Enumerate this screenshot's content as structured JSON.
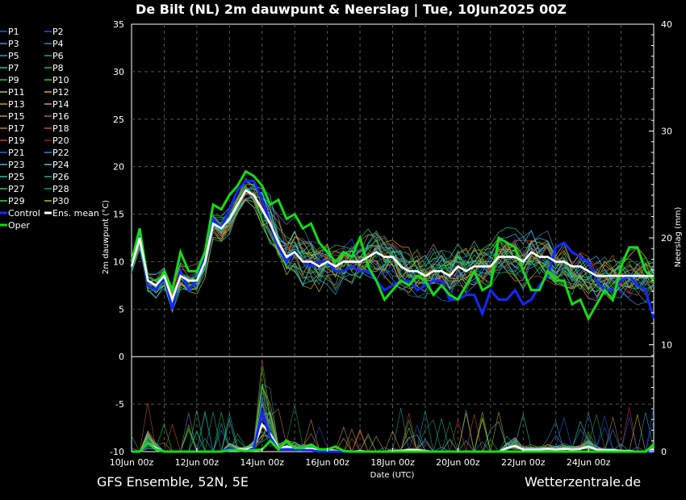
{
  "chart_data": {
    "type": "line",
    "title": "De Bilt  (NL)  2m dauwpunt & Neerslag | Tue, 10Jun2025 00Z",
    "xlabel": "Date (UTC)",
    "ylabel": "2m dauwpunt (°C)",
    "y2label": "Neerslag (mm)",
    "ylim": [
      -10,
      35
    ],
    "y2lim": [
      0,
      40
    ],
    "grid": true,
    "legend_position": "left",
    "x_tick_labels": [
      "10Jun 00z",
      "12Jun 00z",
      "14Jun 00z",
      "16Jun 00z",
      "18Jun 00z",
      "20Jun 00z",
      "22Jun 00z",
      "24Jun 00z"
    ],
    "y_ticks": [
      -10,
      -5,
      0,
      5,
      10,
      15,
      20,
      25,
      30,
      35
    ],
    "y2_ticks": [
      0,
      10,
      20,
      30,
      40
    ],
    "legend": [
      "P1",
      "P2",
      "P3",
      "P4",
      "P5",
      "P6",
      "P7",
      "P8",
      "P9",
      "P10",
      "P11",
      "P12",
      "P13",
      "P14",
      "P15",
      "P16",
      "P17",
      "P18",
      "P19",
      "P20",
      "P21",
      "P22",
      "P23",
      "P24",
      "P25",
      "P26",
      "P27",
      "P28",
      "P29",
      "P30",
      "Control",
      "Ens. mean",
      "Oper"
    ],
    "legend_colors": [
      "#1e5ae6",
      "#2850f0",
      "#3c8cd2",
      "#4682b4",
      "#28a0c8",
      "#1ea0a0",
      "#14c8a0",
      "#14b464",
      "#1ec850",
      "#14dc14",
      "#b4c83c",
      "#d2b428",
      "#c8a014",
      "#d2a03c",
      "#be8c50",
      "#b46432",
      "#c87850",
      "#c85028",
      "#c83c28",
      "#a01e14",
      "#1e64dc",
      "#2896d2",
      "#3cb4e6",
      "#50c8dc",
      "#1ec8b4",
      "#14b48c",
      "#28c86e",
      "#14a050",
      "#32dc32",
      "#c8b41e",
      "#1428ff",
      "#ffffff",
      "#14dc14"
    ],
    "x_hours": [
      0,
      6,
      12,
      18,
      24,
      30,
      36,
      42,
      48,
      54,
      60,
      66,
      72,
      78,
      84,
      90,
      96,
      102,
      108,
      114,
      120,
      126,
      132,
      138,
      144,
      150,
      156,
      162,
      168,
      174,
      180,
      186,
      192,
      198,
      204,
      210,
      216,
      222,
      228,
      234,
      240,
      246,
      252,
      258,
      264,
      270,
      276,
      282,
      288,
      294,
      300,
      306,
      312,
      318,
      324,
      330,
      336,
      342,
      348,
      354,
      360,
      366,
      372,
      378,
      384
    ],
    "series": [
      {
        "name": "Ens. mean",
        "values": [
          9.5,
          12.5,
          8,
          7.5,
          8.5,
          6,
          8.5,
          8,
          8,
          10,
          14,
          13.5,
          14.5,
          16,
          17.5,
          17,
          15.5,
          14,
          12,
          10.5,
          11,
          10,
          10,
          9.5,
          10,
          9.5,
          10,
          10,
          10,
          10.5,
          11,
          10.5,
          10.5,
          9.5,
          9,
          9,
          8.5,
          9,
          9,
          8.5,
          9.5,
          9,
          9.5,
          9.5,
          9.5,
          10.5,
          10.5,
          10.5,
          10,
          11,
          10.5,
          10.5,
          10,
          10,
          9.5,
          9.5,
          9,
          8.5,
          8.5,
          8.5,
          8.5,
          8.5,
          8.5,
          8.5,
          8.5
        ]
      },
      {
        "name": "Control",
        "values": [
          9.5,
          13,
          7.5,
          7,
          8.5,
          5,
          9,
          7,
          8,
          10.5,
          14.5,
          13.5,
          15.5,
          17.5,
          18.5,
          18.5,
          16.5,
          14,
          11.5,
          10,
          11,
          10,
          9.5,
          10,
          10,
          9,
          9,
          9.5,
          9,
          9,
          8,
          7,
          7.5,
          8,
          8,
          7,
          7.5,
          8,
          8,
          6,
          6,
          6.5,
          6.5,
          4.5,
          7,
          6,
          6,
          7,
          5.5,
          6,
          7.5,
          8.5,
          11.5,
          12,
          11,
          10.5,
          10,
          8,
          7,
          7,
          8,
          8.5,
          7.5,
          7,
          4
        ]
      },
      {
        "name": "Oper",
        "values": [
          10,
          13.5,
          8,
          7.5,
          9,
          7,
          11,
          9,
          9,
          11,
          16,
          15.5,
          17,
          18,
          19.5,
          19,
          18,
          16,
          16.5,
          14.5,
          15,
          13.5,
          14,
          12,
          11,
          10,
          11,
          10.5,
          12.5,
          9.5,
          8,
          6,
          7,
          8,
          7.5,
          8.5,
          8,
          6.5,
          7.5,
          6.5,
          6,
          7.5,
          9,
          7,
          7.5,
          12.5,
          12,
          11.5,
          9,
          7,
          7,
          9,
          8,
          8,
          5.5,
          6,
          4,
          5.5,
          7,
          6,
          9.5,
          11.5,
          11.5,
          9,
          8
        ]
      }
    ],
    "precip_mm": [
      {
        "name": "Ens. mean",
        "values": [
          0,
          0,
          1.2,
          0.5,
          0,
          0,
          0,
          0,
          0,
          0,
          0,
          0,
          0.5,
          0.3,
          0.3,
          0.6,
          3.8,
          2.5,
          0.5,
          0.7,
          0.6,
          0.4,
          0.4,
          0.2,
          0.2,
          0.1,
          0,
          0,
          0.1,
          0,
          0,
          0,
          0.1,
          0.1,
          0.2,
          0.2,
          0.1,
          0,
          0,
          0,
          0,
          0,
          0,
          0,
          0,
          0,
          0.5,
          0.8,
          0.3,
          0.3,
          0.3,
          0.4,
          0.3,
          0.4,
          0.3,
          0.4,
          0.7,
          0.3,
          0.2,
          0.2,
          0.1,
          0.1,
          0,
          0,
          0.3
        ]
      },
      {
        "name": "Control",
        "values": [
          0,
          0,
          1,
          0.3,
          0,
          0,
          0,
          0,
          0,
          0,
          0,
          0,
          0.5,
          0.2,
          0,
          0.5,
          5.5,
          2,
          0.3,
          0.3,
          0.3,
          0.2,
          0.2,
          0,
          0,
          0,
          0,
          0,
          0,
          0,
          0,
          0,
          0,
          0,
          0,
          0,
          0,
          0,
          0,
          0,
          0,
          0,
          0,
          0,
          0,
          0,
          0,
          0,
          0,
          0,
          0,
          0,
          0,
          0,
          0,
          0,
          0,
          0,
          0,
          0,
          0,
          0,
          0,
          0,
          0
        ]
      },
      {
        "name": "Oper",
        "values": [
          0,
          0,
          1.2,
          0.3,
          0,
          0,
          0,
          0,
          0,
          0,
          0,
          0,
          0.2,
          0.2,
          0.1,
          0.2,
          0.3,
          1.5,
          0.3,
          1.5,
          0.5,
          0.5,
          1,
          0.3,
          0.3,
          0.7,
          0.1,
          0,
          0,
          0,
          0,
          0,
          0,
          0,
          0,
          0,
          0,
          0,
          0,
          0,
          0,
          0,
          0,
          0,
          0,
          0,
          0,
          0,
          0,
          0,
          0,
          0,
          0,
          0,
          0,
          0,
          0,
          0,
          0,
          0,
          0,
          0,
          0,
          0,
          1
        ]
      }
    ]
  },
  "footer": {
    "left": "GFS Ensemble, 52N, 5E",
    "right": "Wetterzentrale.de"
  }
}
